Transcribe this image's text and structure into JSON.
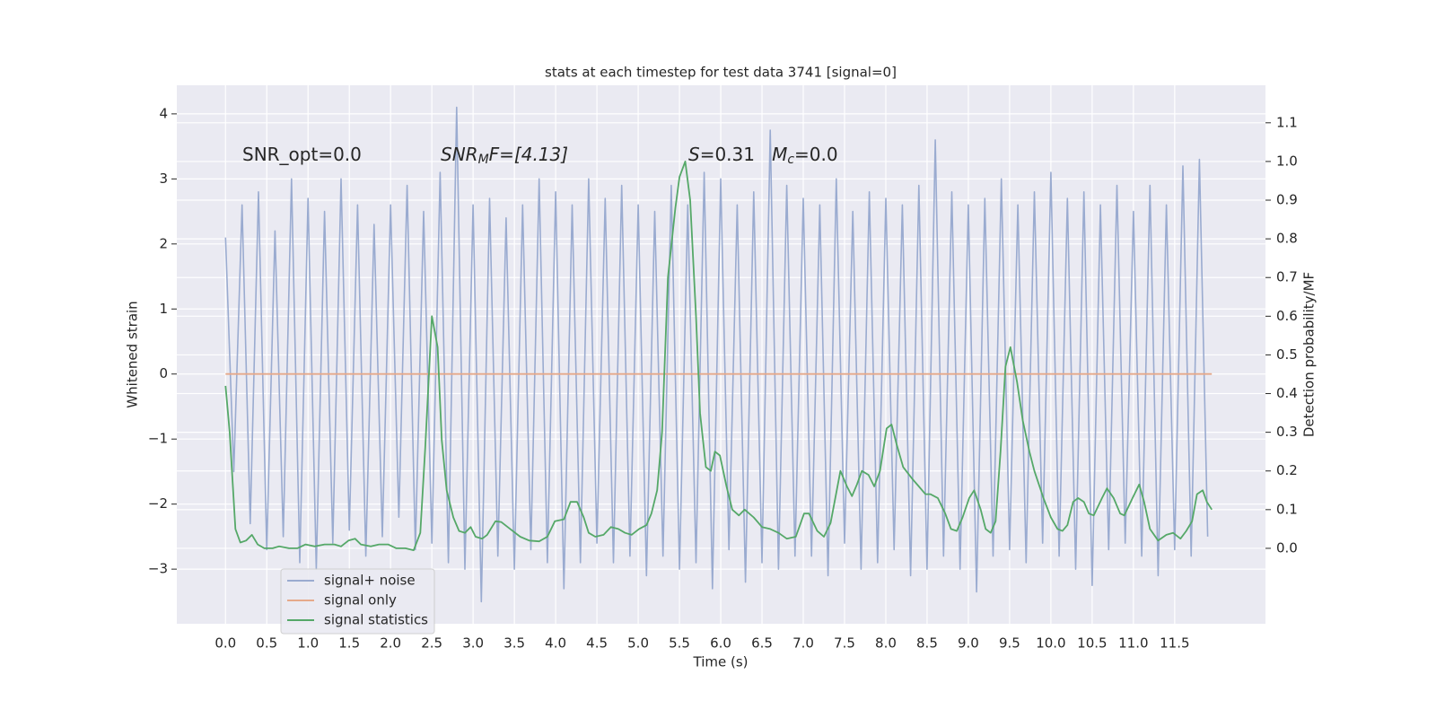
{
  "chart_data": {
    "type": "line",
    "title": "stats at each timestep for test data 3741 [signal=0]",
    "xlabel": "Time (s)",
    "ylabel": "Whitened strain",
    "y2label": "Detection probability/MF",
    "annotations": [
      [
        "SNR_opt=0.0"
      ],
      [
        "SNR",
        "M",
        "F=[4.13]"
      ],
      [
        "S",
        "=0.31   ",
        "M",
        "c",
        "=0.0"
      ]
    ],
    "xlim": [
      -0.59,
      12.6
    ],
    "ylim": [
      -3.84,
      4.44
    ],
    "y2lim": [
      -0.195,
      1.197
    ],
    "xticks": [
      {
        "value": 0,
        "label": "0.0"
      },
      {
        "value": 0.5,
        "label": "0.5"
      },
      {
        "value": 1,
        "label": "1.0"
      },
      {
        "value": 1.5,
        "label": "1.5"
      },
      {
        "value": 2,
        "label": "2.0"
      },
      {
        "value": 2.5,
        "label": "2.5"
      },
      {
        "value": 3,
        "label": "3.0"
      },
      {
        "value": 3.5,
        "label": "3.5"
      },
      {
        "value": 4,
        "label": "4.0"
      },
      {
        "value": 4.5,
        "label": "4.5"
      },
      {
        "value": 5,
        "label": "5.0"
      },
      {
        "value": 5.5,
        "label": "5.5"
      },
      {
        "value": 6,
        "label": "6.0"
      },
      {
        "value": 6.5,
        "label": "6.5"
      },
      {
        "value": 7,
        "label": "7.0"
      },
      {
        "value": 7.5,
        "label": "7.5"
      },
      {
        "value": 8,
        "label": "8.0"
      },
      {
        "value": 8.5,
        "label": "8.5"
      },
      {
        "value": 9,
        "label": "9.0"
      },
      {
        "value": 9.5,
        "label": "9.5"
      },
      {
        "value": 10,
        "label": "10.0"
      },
      {
        "value": 10.5,
        "label": "10.5"
      },
      {
        "value": 11,
        "label": "11.0"
      },
      {
        "value": 11.5,
        "label": "11.5"
      }
    ],
    "yticks": [
      {
        "value": -3,
        "label": "−3"
      },
      {
        "value": -2,
        "label": "−2"
      },
      {
        "value": -1,
        "label": "−1"
      },
      0,
      1,
      2,
      3,
      4
    ],
    "y2ticks": [
      {
        "value": 0,
        "label": "0.0"
      },
      {
        "value": 0.1,
        "label": "0.1"
      },
      {
        "value": 0.2,
        "label": "0.2"
      },
      {
        "value": 0.3,
        "label": "0.3"
      },
      {
        "value": 0.4,
        "label": "0.4"
      },
      {
        "value": 0.5,
        "label": "0.5"
      },
      {
        "value": 0.6,
        "label": "0.6"
      },
      {
        "value": 0.7,
        "label": "0.7"
      },
      {
        "value": 0.8,
        "label": "0.8"
      },
      {
        "value": 0.9,
        "label": "0.9"
      },
      {
        "value": 1,
        "label": "1.0"
      },
      {
        "value": 1.1,
        "label": "1.1"
      }
    ],
    "grid": true,
    "legend": "lower left",
    "series": [
      {
        "name": "signal+ noise",
        "color": "#9aabd0",
        "axis": "y",
        "x": [
          0,
          0.1,
          0.2,
          0.3,
          0.4,
          0.5,
          0.6,
          0.7,
          0.8,
          0.9,
          1,
          1.1,
          1.2,
          1.3,
          1.4,
          1.5,
          1.6,
          1.7,
          1.8,
          1.9,
          2,
          2.1,
          2.2,
          2.3,
          2.4,
          2.5,
          2.6,
          2.7,
          2.8,
          2.9,
          3,
          3.1,
          3.2,
          3.3,
          3.4,
          3.5,
          3.6,
          3.7,
          3.8,
          3.9,
          4,
          4.1,
          4.2,
          4.3,
          4.4,
          4.5,
          4.6,
          4.7,
          4.8,
          4.9,
          5,
          5.1,
          5.2,
          5.3,
          5.4,
          5.5,
          5.6,
          5.7,
          5.8,
          5.9,
          6,
          6.1,
          6.2,
          6.3,
          6.4,
          6.5,
          6.6,
          6.7,
          6.8,
          6.9,
          7,
          7.1,
          7.2,
          7.3,
          7.4,
          7.5,
          7.6,
          7.7,
          7.8,
          7.9,
          8,
          8.1,
          8.2,
          8.3,
          8.4,
          8.5,
          8.6,
          8.7,
          8.8,
          8.9,
          9,
          9.1,
          9.2,
          9.3,
          9.4,
          9.5,
          9.6,
          9.7,
          9.8,
          9.9,
          10,
          10.1,
          10.2,
          10.3,
          10.4,
          10.5,
          10.6,
          10.7,
          10.8,
          10.9,
          11,
          11.1,
          11.2,
          11.3,
          11.4,
          11.5,
          11.6,
          11.7,
          11.8,
          11.9
        ],
        "values": [
          2.1,
          -1.5,
          2.6,
          -2.3,
          2.8,
          -2.7,
          2.2,
          -2.5,
          3.0,
          -2.9,
          2.7,
          -3.0,
          2.5,
          -2.6,
          3.0,
          -2.4,
          2.6,
          -2.8,
          2.3,
          -2.5,
          2.6,
          -2.2,
          2.9,
          -2.7,
          2.5,
          -2.6,
          3.1,
          -2.9,
          4.1,
          -3.0,
          2.6,
          -3.5,
          2.7,
          -2.8,
          2.4,
          -3.0,
          2.6,
          -2.7,
          3.0,
          -2.9,
          2.8,
          -3.3,
          2.6,
          -2.9,
          3.0,
          -2.6,
          2.7,
          -2.9,
          2.9,
          -2.8,
          2.6,
          -3.1,
          2.5,
          -2.8,
          2.9,
          -3.0,
          2.6,
          -2.9,
          3.1,
          -3.3,
          3.0,
          -2.7,
          2.6,
          -3.2,
          2.8,
          -2.9,
          3.75,
          -3.0,
          2.9,
          -2.8,
          2.7,
          -2.8,
          2.6,
          -3.1,
          3.0,
          -2.6,
          2.5,
          -3.0,
          2.8,
          -2.9,
          2.7,
          -2.7,
          2.6,
          -3.1,
          2.9,
          -3.0,
          3.6,
          -2.8,
          2.8,
          -3.0,
          2.6,
          -3.35,
          2.7,
          -2.8,
          3.0,
          -2.7,
          2.6,
          -2.9,
          2.8,
          -2.6,
          3.1,
          -2.8,
          2.7,
          -3.0,
          2.8,
          -3.25,
          2.6,
          -2.7,
          2.9,
          -2.6,
          2.5,
          -2.8,
          2.9,
          -3.1,
          2.6,
          -2.7,
          3.2,
          -2.8,
          3.3,
          -2.5
        ]
      },
      {
        "name": "signal only",
        "color": "#e6a98a",
        "axis": "y",
        "x": [
          0,
          11.95
        ],
        "values": [
          0,
          0
        ]
      },
      {
        "name": "signal statistics",
        "color": "#55a868",
        "axis": "y2",
        "x": [
          0,
          0.05,
          0.12,
          0.18,
          0.25,
          0.32,
          0.39,
          0.47,
          0.57,
          0.65,
          0.77,
          0.87,
          0.97,
          1.08,
          1.2,
          1.32,
          1.4,
          1.49,
          1.57,
          1.64,
          1.76,
          1.86,
          1.97,
          2.07,
          2.18,
          2.28,
          2.36,
          2.42,
          2.5,
          2.57,
          2.62,
          2.68,
          2.76,
          2.83,
          2.9,
          2.97,
          3.03,
          3.11,
          3.17,
          3.27,
          3.34,
          3.45,
          3.57,
          3.68,
          3.8,
          3.9,
          3.99,
          4.1,
          4.18,
          4.26,
          4.34,
          4.4,
          4.48,
          4.58,
          4.67,
          4.76,
          4.84,
          4.92,
          5.01,
          5.1,
          5.16,
          5.23,
          5.29,
          5.36,
          5.45,
          5.5,
          5.57,
          5.63,
          5.7,
          5.75,
          5.82,
          5.88,
          5.93,
          5.99,
          6.07,
          6.14,
          6.22,
          6.29,
          6.4,
          6.5,
          6.6,
          6.7,
          6.8,
          6.91,
          7.01,
          7.07,
          7.17,
          7.25,
          7.33,
          7.45,
          7.53,
          7.59,
          7.65,
          7.71,
          7.79,
          7.86,
          7.93,
          8.01,
          8.07,
          8.13,
          8.21,
          8.32,
          8.4,
          8.48,
          8.54,
          8.63,
          8.72,
          8.79,
          8.86,
          8.93,
          9.01,
          9.07,
          9.15,
          9.21,
          9.27,
          9.33,
          9.39,
          9.45,
          9.51,
          9.59,
          9.66,
          9.74,
          9.8,
          9.91,
          10.0,
          10.08,
          10.14,
          10.2,
          10.27,
          10.33,
          10.4,
          10.46,
          10.52,
          10.62,
          10.68,
          10.76,
          10.84,
          10.89,
          10.99,
          11.07,
          11.13,
          11.2,
          11.3,
          11.4,
          11.48,
          11.57,
          11.64,
          11.71,
          11.77,
          11.84,
          11.89,
          11.95
        ],
        "values": [
          0.42,
          0.3,
          0.05,
          0.015,
          0.02,
          0.035,
          0.01,
          0.0,
          0.0,
          0.005,
          0.0,
          0.0,
          0.01,
          0.005,
          0.01,
          0.01,
          0.005,
          0.02,
          0.025,
          0.01,
          0.005,
          0.01,
          0.01,
          0.0,
          0.0,
          -0.005,
          0.04,
          0.26,
          0.6,
          0.52,
          0.28,
          0.15,
          0.08,
          0.045,
          0.04,
          0.055,
          0.03,
          0.025,
          0.035,
          0.07,
          0.068,
          0.05,
          0.03,
          0.02,
          0.018,
          0.03,
          0.07,
          0.075,
          0.12,
          0.12,
          0.08,
          0.04,
          0.03,
          0.035,
          0.055,
          0.05,
          0.04,
          0.035,
          0.05,
          0.06,
          0.09,
          0.15,
          0.3,
          0.7,
          0.88,
          0.96,
          1.0,
          0.9,
          0.6,
          0.35,
          0.21,
          0.2,
          0.25,
          0.24,
          0.16,
          0.1,
          0.085,
          0.1,
          0.08,
          0.055,
          0.05,
          0.04,
          0.025,
          0.03,
          0.09,
          0.09,
          0.045,
          0.03,
          0.065,
          0.2,
          0.16,
          0.135,
          0.165,
          0.2,
          0.19,
          0.16,
          0.2,
          0.31,
          0.32,
          0.27,
          0.21,
          0.18,
          0.16,
          0.14,
          0.14,
          0.13,
          0.09,
          0.05,
          0.045,
          0.08,
          0.13,
          0.15,
          0.1,
          0.05,
          0.04,
          0.07,
          0.25,
          0.47,
          0.52,
          0.43,
          0.33,
          0.25,
          0.2,
          0.13,
          0.08,
          0.05,
          0.045,
          0.06,
          0.12,
          0.13,
          0.12,
          0.09,
          0.085,
          0.13,
          0.155,
          0.13,
          0.09,
          0.085,
          0.13,
          0.165,
          0.12,
          0.05,
          0.02,
          0.035,
          0.04,
          0.025,
          0.045,
          0.07,
          0.14,
          0.15,
          0.12,
          0.1
        ]
      }
    ]
  }
}
